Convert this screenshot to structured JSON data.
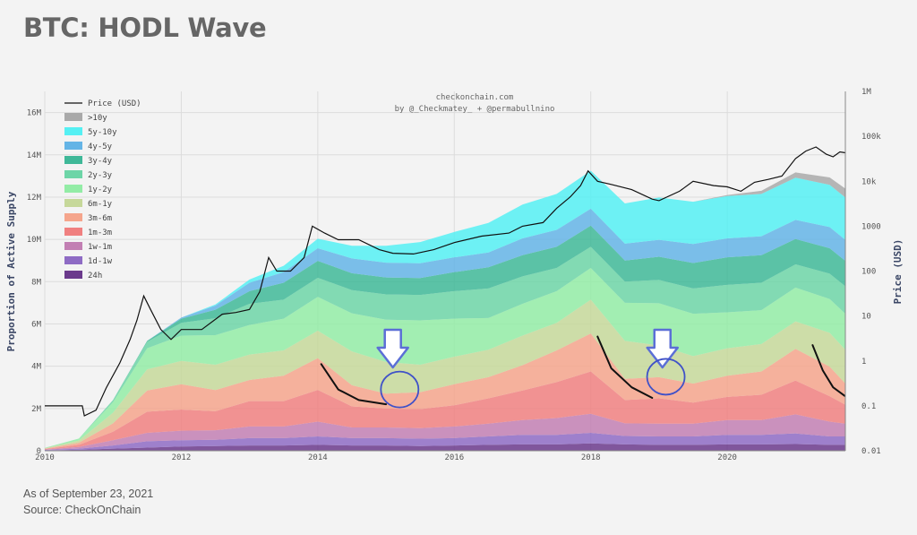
{
  "header": {
    "title": "BTC: HODL Wave"
  },
  "footer": {
    "as_of": "As of September 23, 2021",
    "source": "Source: CheckOnChain"
  },
  "colors": {
    "background": "#f3f3f3",
    "plot_background": "#f3f3f3",
    "price_line": "#111111",
    "annotation_arrow": "#5b6fd6",
    "annotation_circle": "#3f51c8"
  },
  "chart_data": {
    "type": "area",
    "title": "",
    "credit": [
      "checkonchain.com",
      "by @_Checkmatey_ + @permabullnino"
    ],
    "ylabel": "Proportion of Active Supply",
    "ylabel_right": "Price (USD)",
    "xlim": [
      2010.0,
      2021.73
    ],
    "ylim": [
      0,
      17.0
    ],
    "y_tick_labels": [
      "0",
      "2M",
      "4M",
      "6M",
      "8M",
      "10M",
      "12M",
      "14M",
      "16M"
    ],
    "y_ticks": [
      0,
      2,
      4,
      6,
      8,
      10,
      12,
      14,
      16
    ],
    "x_ticks": [
      2010,
      2012,
      2014,
      2016,
      2018,
      2020
    ],
    "x_tick_labels": [
      "2010",
      "2012",
      "2014",
      "2016",
      "2018",
      "2020"
    ],
    "right_axis_scale": "log",
    "right_ylim": [
      0.01,
      1000000
    ],
    "right_ticks": [
      0.01,
      0.1,
      1,
      10,
      100,
      1000,
      10000,
      100000,
      1000000
    ],
    "right_tick_labels": [
      "0.01",
      "0.1",
      "1",
      "10",
      "100",
      "1000",
      "10k",
      "100k",
      "1M"
    ],
    "grid": true,
    "legend_position": "top-left",
    "x": [
      2010.0,
      2010.5,
      2011.0,
      2011.5,
      2012.0,
      2012.5,
      2013.0,
      2013.5,
      2014.0,
      2014.5,
      2015.0,
      2015.5,
      2016.0,
      2016.5,
      2017.0,
      2017.5,
      2018.0,
      2018.5,
      2019.0,
      2019.5,
      2020.0,
      2020.5,
      2021.0,
      2021.5,
      2021.73
    ],
    "series": [
      {
        "name": "24h",
        "color": "#6b3a8c",
        "values": [
          0.02,
          0.05,
          0.1,
          0.15,
          0.2,
          0.22,
          0.25,
          0.25,
          0.28,
          0.25,
          0.25,
          0.22,
          0.25,
          0.28,
          0.3,
          0.3,
          0.35,
          0.3,
          0.28,
          0.28,
          0.3,
          0.3,
          0.32,
          0.28,
          0.28
        ]
      },
      {
        "name": "1d-1w",
        "color": "#8e6bc4",
        "values": [
          0.02,
          0.05,
          0.15,
          0.3,
          0.3,
          0.3,
          0.35,
          0.35,
          0.4,
          0.35,
          0.35,
          0.35,
          0.35,
          0.4,
          0.45,
          0.45,
          0.5,
          0.4,
          0.4,
          0.4,
          0.45,
          0.45,
          0.5,
          0.4,
          0.4
        ]
      },
      {
        "name": "1w-1m",
        "color": "#c27fb3",
        "values": [
          0.02,
          0.08,
          0.25,
          0.4,
          0.45,
          0.45,
          0.55,
          0.55,
          0.7,
          0.5,
          0.5,
          0.5,
          0.55,
          0.6,
          0.7,
          0.8,
          0.9,
          0.6,
          0.6,
          0.6,
          0.7,
          0.7,
          0.9,
          0.7,
          0.6
        ]
      },
      {
        "name": "1m-3m",
        "color": "#f08080",
        "values": [
          0.02,
          0.1,
          0.4,
          1.0,
          1.0,
          0.9,
          1.2,
          1.2,
          1.5,
          1.0,
          0.9,
          0.9,
          1.0,
          1.2,
          1.4,
          1.7,
          2.0,
          1.1,
          1.2,
          1.0,
          1.1,
          1.2,
          1.6,
          1.2,
          0.9
        ]
      },
      {
        "name": "3m-6m",
        "color": "#f5a58c",
        "values": [
          0.02,
          0.1,
          0.4,
          1.0,
          1.2,
          1.0,
          1.0,
          1.2,
          1.5,
          1.0,
          0.7,
          0.8,
          1.0,
          1.0,
          1.2,
          1.5,
          1.8,
          1.0,
          1.0,
          0.9,
          1.0,
          1.1,
          1.5,
          1.4,
          1.0
        ]
      },
      {
        "name": "6m-1y",
        "color": "#c6d89a",
        "values": [
          0.02,
          0.1,
          0.5,
          1.0,
          1.1,
          1.2,
          1.2,
          1.2,
          1.3,
          1.6,
          1.5,
          1.3,
          1.3,
          1.3,
          1.4,
          1.3,
          1.6,
          1.8,
          1.5,
          1.3,
          1.3,
          1.3,
          1.3,
          1.6,
          1.6
        ]
      },
      {
        "name": "1y-2y",
        "color": "#93eca6",
        "values": [
          0.02,
          0.1,
          0.5,
          1.0,
          1.2,
          1.4,
          1.4,
          1.5,
          1.6,
          1.8,
          2.0,
          2.1,
          1.8,
          1.5,
          1.5,
          1.5,
          1.5,
          1.8,
          2.0,
          2.0,
          1.7,
          1.6,
          1.6,
          1.6,
          1.7
        ]
      },
      {
        "name": "2y-3y",
        "color": "#6dd5a7",
        "values": [
          0,
          0,
          0.1,
          0.3,
          0.6,
          0.8,
          1.0,
          0.9,
          0.9,
          1.1,
          1.2,
          1.2,
          1.3,
          1.4,
          1.3,
          1.1,
          1.0,
          1.0,
          1.1,
          1.2,
          1.3,
          1.3,
          1.1,
          1.2,
          1.3
        ]
      },
      {
        "name": "3y-4y",
        "color": "#3fb898",
        "values": [
          0,
          0,
          0,
          0.05,
          0.2,
          0.4,
          0.6,
          0.8,
          0.8,
          0.8,
          0.8,
          0.8,
          0.9,
          1.0,
          1.0,
          1.0,
          1.0,
          1.0,
          1.1,
          1.2,
          1.3,
          1.3,
          1.2,
          1.2,
          1.2
        ]
      },
      {
        "name": "4y-5y",
        "color": "#64b4e6",
        "values": [
          0,
          0,
          0,
          0,
          0.05,
          0.2,
          0.4,
          0.5,
          0.6,
          0.7,
          0.7,
          0.7,
          0.7,
          0.7,
          0.8,
          0.8,
          0.8,
          0.8,
          0.8,
          0.9,
          0.9,
          0.9,
          0.9,
          1.0,
          1.0
        ]
      },
      {
        "name": "5y-10y",
        "color": "#55f0f3",
        "values": [
          0,
          0,
          0,
          0,
          0,
          0.05,
          0.15,
          0.3,
          0.45,
          0.6,
          0.8,
          1.0,
          1.2,
          1.4,
          1.6,
          1.7,
          1.8,
          1.9,
          2.0,
          2.0,
          2.0,
          2.0,
          2.0,
          2.0,
          2.0
        ]
      },
      {
        "name": ">10y",
        "color": "#a9a9a9",
        "values": [
          0,
          0,
          0,
          0,
          0,
          0,
          0,
          0,
          0,
          0,
          0,
          0,
          0,
          0,
          0,
          0,
          0,
          0,
          0,
          0,
          0.05,
          0.15,
          0.25,
          0.35,
          0.42
        ]
      }
    ],
    "price": {
      "name": "Price (USD)",
      "x": [
        2010.0,
        2010.55,
        2010.58,
        2010.75,
        2010.9,
        2011.1,
        2011.25,
        2011.35,
        2011.45,
        2011.55,
        2011.7,
        2011.85,
        2012.0,
        2012.3,
        2012.6,
        2012.8,
        2013.0,
        2013.15,
        2013.28,
        2013.4,
        2013.6,
        2013.8,
        2013.92,
        2014.1,
        2014.3,
        2014.6,
        2014.9,
        2015.1,
        2015.4,
        2015.7,
        2016.0,
        2016.4,
        2016.8,
        2017.0,
        2017.3,
        2017.5,
        2017.7,
        2017.85,
        2017.96,
        2018.1,
        2018.3,
        2018.6,
        2018.9,
        2019.0,
        2019.3,
        2019.5,
        2019.8,
        2020.0,
        2020.2,
        2020.4,
        2020.6,
        2020.8,
        2021.0,
        2021.15,
        2021.3,
        2021.45,
        2021.55,
        2021.65,
        2021.73
      ],
      "values": [
        0.1,
        0.1,
        0.06,
        0.08,
        0.25,
        0.9,
        3,
        8,
        28,
        14,
        5,
        3,
        5,
        5,
        11,
        12,
        14,
        35,
        200,
        100,
        100,
        200,
        1000,
        700,
        500,
        500,
        300,
        250,
        240,
        300,
        430,
        600,
        700,
        1000,
        1200,
        2500,
        4500,
        8000,
        17000,
        10000,
        8500,
        6500,
        4000,
        3700,
        6000,
        10000,
        8000,
        7500,
        6000,
        9500,
        11000,
        13000,
        32000,
        47000,
        58000,
        40000,
        35000,
        45000,
        43000
      ]
    },
    "annotations": [
      {
        "type": "arrow",
        "x": 2015.1,
        "color": "#5b6fd6"
      },
      {
        "type": "circle",
        "x": 2015.2,
        "y": 2.9,
        "color": "#3f51c8"
      },
      {
        "type": "arrow",
        "x": 2019.05,
        "color": "#5b6fd6"
      },
      {
        "type": "circle",
        "x": 2019.1,
        "y": 3.5,
        "color": "#3f51c8"
      },
      {
        "type": "curve",
        "x": [
          2014.05,
          2014.3,
          2014.6,
          2015.0
        ],
        "y": [
          4.1,
          2.9,
          2.4,
          2.2
        ]
      },
      {
        "type": "curve",
        "x": [
          2018.1,
          2018.3,
          2018.6,
          2018.9
        ],
        "y": [
          5.4,
          3.9,
          3.0,
          2.5
        ]
      },
      {
        "type": "curve",
        "x": [
          2021.25,
          2021.4,
          2021.55,
          2021.72
        ],
        "y": [
          5.0,
          3.8,
          3.0,
          2.6
        ]
      }
    ]
  }
}
